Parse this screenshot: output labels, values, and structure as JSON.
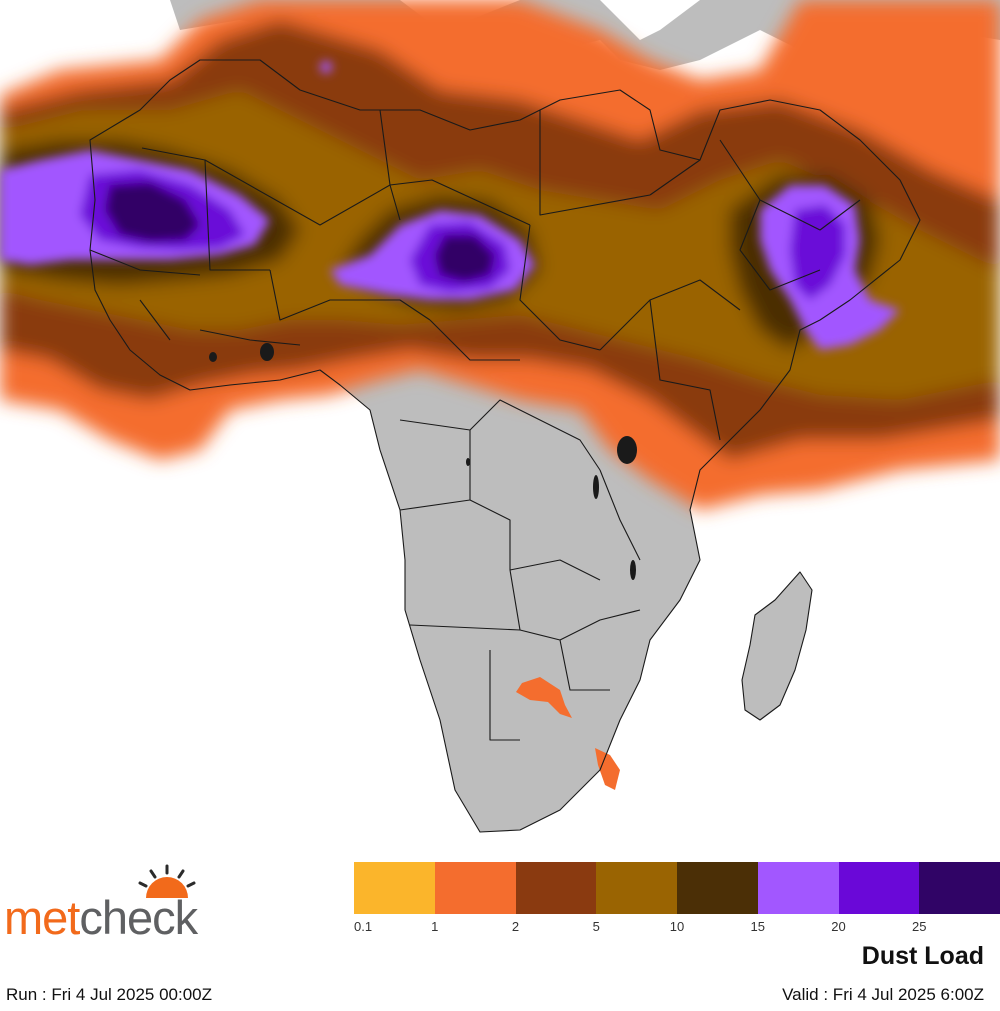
{
  "map": {
    "region": "Africa",
    "ocean_color": "#ffffff",
    "land_color": "#bdbdbd",
    "border_color": "#1a1a1a"
  },
  "legend": {
    "bins": [
      {
        "label": "0.1",
        "color": "#fbb52b"
      },
      {
        "label": "1",
        "color": "#f46d2e"
      },
      {
        "label": "2",
        "color": "#8a3a10"
      },
      {
        "label": "5",
        "color": "#9a6402"
      },
      {
        "label": "10",
        "color": "#4b2f06"
      },
      {
        "label": "15",
        "color": "#a257ff"
      },
      {
        "label": "20",
        "color": "#6a08d8"
      },
      {
        "label": "25",
        "color": "#300466"
      }
    ]
  },
  "logo": {
    "part1": "met",
    "part2": "check"
  },
  "product_title": "Dust Load",
  "run_text": "Run : Fri 4 Jul 2025 00:00Z",
  "valid_text": "Valid : Fri 4 Jul 2025 6:00Z"
}
